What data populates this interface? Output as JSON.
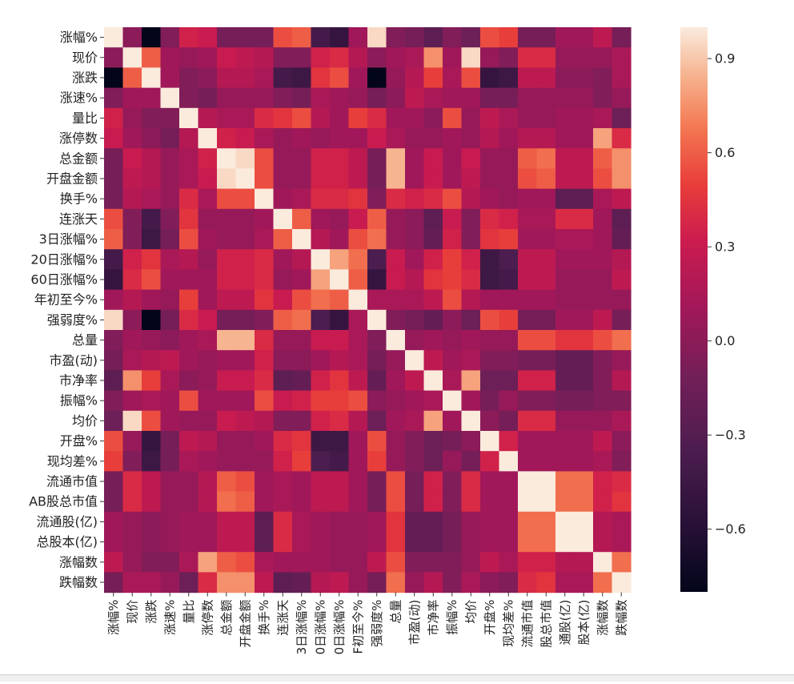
{
  "chart_data": {
    "type": "heatmap",
    "title": "",
    "xlabel": "",
    "ylabel": "",
    "row_labels": [
      "涨幅%",
      "现价",
      "涨跌",
      "涨速%",
      "量比",
      "涨停数",
      "总金额",
      "开盘金额",
      "换手%",
      "连涨天",
      "3日涨幅%",
      "20日涨幅%",
      "60日涨幅%",
      "年初至今%",
      "强弱度%",
      "总量",
      "市盈(动)",
      "市净率",
      "振幅%",
      "均价",
      "开盘%",
      "现均差%",
      "流通市值",
      "AB股总市值",
      "流通股(亿)",
      "总股本(亿)",
      "涨幅数",
      "跌幅数"
    ],
    "col_labels": [
      "涨幅%",
      "现价",
      "涨跌",
      "涨速%",
      "量比",
      "涨停数",
      "总金额",
      "开盘金额",
      "换手%",
      "连涨天",
      "3日涨幅%",
      "0日涨幅%",
      "0日涨幅%",
      "F初至今%",
      "强弱度%",
      "总量",
      "市盈(动)",
      "市净率",
      "振幅%",
      "均价",
      "开盘%",
      "现均差%",
      "流通市值",
      "股总市值",
      "通股(亿)",
      "股本(亿)",
      "涨幅数",
      "跌幅数"
    ],
    "colorbar": {
      "vmin": -0.8,
      "vmax": 1.0,
      "ticks": [
        0.9,
        0.6,
        0.3,
        0.0,
        -0.3,
        -0.6
      ],
      "tick_labels": [
        "0.9",
        "0.6",
        "0.3",
        "0.0",
        "−0.3",
        "−0.6"
      ],
      "colormap": "rocket"
    },
    "values": [
      [
        1.0,
        0.0,
        -0.8,
        -0.05,
        0.35,
        0.3,
        -0.1,
        -0.1,
        -0.1,
        0.55,
        0.6,
        -0.4,
        -0.5,
        0.1,
        0.95,
        -0.05,
        -0.1,
        -0.25,
        -0.05,
        -0.15,
        0.55,
        0.5,
        -0.1,
        -0.1,
        0.1,
        0.1,
        0.25,
        -0.1
      ],
      [
        0.0,
        1.0,
        0.6,
        0.1,
        0.05,
        0.1,
        0.3,
        0.25,
        0.2,
        -0.05,
        -0.05,
        0.35,
        0.4,
        0.2,
        0.0,
        0.1,
        0.15,
        0.75,
        0.1,
        0.95,
        0.05,
        -0.05,
        0.4,
        0.4,
        0.05,
        0.05,
        0.05,
        0.15
      ],
      [
        -0.8,
        0.6,
        1.0,
        0.1,
        -0.05,
        0.0,
        0.2,
        0.2,
        0.15,
        -0.4,
        -0.45,
        0.45,
        0.55,
        0.1,
        -0.8,
        0.05,
        0.2,
        0.5,
        0.15,
        0.55,
        -0.5,
        -0.45,
        0.25,
        0.25,
        0.0,
        0.0,
        -0.05,
        0.15
      ],
      [
        -0.05,
        0.1,
        0.1,
        1.0,
        -0.05,
        -0.1,
        0.05,
        0.05,
        0.05,
        -0.05,
        -0.1,
        0.15,
        0.1,
        0.05,
        -0.1,
        0.0,
        0.25,
        0.15,
        0.1,
        0.1,
        -0.1,
        -0.1,
        0.05,
        0.05,
        0.05,
        0.05,
        -0.05,
        0.05
      ],
      [
        0.35,
        0.05,
        -0.05,
        -0.05,
        1.0,
        0.2,
        0.15,
        0.15,
        0.4,
        0.45,
        0.55,
        0.2,
        0.1,
        0.5,
        0.4,
        0.1,
        0.1,
        0.0,
        0.55,
        0.05,
        0.25,
        0.15,
        0.05,
        0.05,
        0.1,
        0.1,
        0.15,
        -0.15
      ],
      [
        0.3,
        0.1,
        0.0,
        -0.1,
        0.2,
        1.0,
        0.35,
        0.3,
        0.15,
        0.05,
        0.1,
        0.05,
        0.1,
        0.1,
        0.3,
        0.15,
        0.05,
        0.05,
        0.1,
        0.05,
        0.2,
        0.1,
        0.2,
        0.2,
        0.1,
        0.1,
        0.8,
        0.4
      ],
      [
        -0.1,
        0.3,
        0.2,
        0.05,
        0.15,
        0.35,
        1.0,
        0.95,
        0.55,
        0.05,
        0.05,
        0.35,
        0.35,
        0.25,
        -0.1,
        0.85,
        0.1,
        0.3,
        0.1,
        0.3,
        0.05,
        0.05,
        0.6,
        0.65,
        0.25,
        0.25,
        0.6,
        0.75
      ],
      [
        -0.1,
        0.25,
        0.2,
        0.05,
        0.15,
        0.3,
        0.95,
        1.0,
        0.55,
        0.05,
        0.05,
        0.35,
        0.35,
        0.25,
        -0.1,
        0.85,
        0.1,
        0.3,
        0.1,
        0.25,
        0.05,
        0.05,
        0.55,
        0.6,
        0.25,
        0.25,
        0.55,
        0.75
      ],
      [
        -0.1,
        0.2,
        0.15,
        0.05,
        0.4,
        0.15,
        0.55,
        0.55,
        1.0,
        0.1,
        0.15,
        0.4,
        0.4,
        0.45,
        -0.05,
        0.4,
        0.35,
        0.4,
        0.55,
        0.2,
        0.1,
        0.05,
        0.1,
        0.1,
        -0.25,
        -0.25,
        0.15,
        0.25
      ],
      [
        0.55,
        -0.05,
        -0.4,
        -0.05,
        0.45,
        0.05,
        0.05,
        0.05,
        0.1,
        1.0,
        0.6,
        0.1,
        0.05,
        0.3,
        0.6,
        0.05,
        0.0,
        -0.25,
        0.3,
        -0.05,
        0.4,
        0.35,
        0.15,
        0.15,
        0.4,
        0.4,
        0.1,
        -0.25
      ],
      [
        0.6,
        -0.05,
        -0.45,
        -0.1,
        0.55,
        0.1,
        0.05,
        0.05,
        0.15,
        0.6,
        1.0,
        0.2,
        0.1,
        0.55,
        0.65,
        0.05,
        0.0,
        -0.2,
        0.35,
        -0.05,
        0.45,
        0.5,
        0.1,
        0.1,
        0.15,
        0.15,
        0.1,
        -0.2
      ],
      [
        -0.4,
        0.35,
        0.45,
        0.15,
        0.2,
        0.05,
        0.35,
        0.35,
        0.4,
        0.1,
        0.2,
        1.0,
        0.8,
        0.65,
        -0.35,
        0.3,
        0.1,
        0.35,
        0.5,
        0.35,
        -0.45,
        -0.35,
        0.25,
        0.25,
        0.1,
        0.1,
        0.1,
        0.2
      ],
      [
        -0.5,
        0.4,
        0.55,
        0.1,
        0.1,
        0.1,
        0.35,
        0.35,
        0.4,
        0.05,
        0.1,
        0.8,
        1.0,
        0.6,
        -0.5,
        0.3,
        0.2,
        0.45,
        0.5,
        0.4,
        -0.45,
        -0.4,
        0.25,
        0.25,
        0.05,
        0.05,
        0.05,
        0.25
      ],
      [
        0.1,
        0.2,
        0.1,
        0.05,
        0.5,
        0.1,
        0.25,
        0.25,
        0.45,
        0.3,
        0.55,
        0.65,
        0.6,
        1.0,
        0.15,
        0.15,
        0.15,
        0.25,
        0.55,
        0.2,
        0.1,
        0.1,
        0.1,
        0.1,
        0.05,
        0.05,
        0.05,
        0.05
      ],
      [
        0.95,
        0.0,
        -0.8,
        -0.1,
        0.4,
        0.3,
        -0.1,
        -0.1,
        -0.05,
        0.6,
        0.65,
        -0.35,
        -0.5,
        0.15,
        1.0,
        -0.05,
        -0.1,
        -0.2,
        0.0,
        -0.15,
        0.55,
        0.5,
        -0.1,
        -0.1,
        0.1,
        0.1,
        0.25,
        -0.1
      ],
      [
        -0.05,
        0.1,
        0.05,
        0.0,
        0.1,
        0.15,
        0.85,
        0.85,
        0.4,
        0.05,
        0.05,
        0.3,
        0.3,
        0.15,
        -0.05,
        1.0,
        0.05,
        0.1,
        0.05,
        0.1,
        0.05,
        0.05,
        0.55,
        0.55,
        0.45,
        0.45,
        0.55,
        0.65
      ],
      [
        -0.1,
        0.15,
        0.2,
        0.25,
        0.1,
        0.05,
        0.1,
        0.1,
        0.35,
        0.0,
        0.0,
        0.1,
        0.2,
        0.15,
        -0.1,
        0.05,
        1.0,
        0.25,
        0.1,
        0.15,
        -0.05,
        -0.05,
        -0.1,
        -0.1,
        -0.2,
        -0.2,
        -0.05,
        0.05
      ],
      [
        -0.25,
        0.75,
        0.5,
        0.15,
        0.0,
        0.05,
        0.3,
        0.3,
        0.4,
        -0.25,
        -0.2,
        0.35,
        0.45,
        0.25,
        -0.2,
        0.1,
        0.25,
        1.0,
        0.15,
        0.8,
        -0.15,
        -0.15,
        0.35,
        0.35,
        -0.2,
        -0.2,
        -0.05,
        0.2
      ],
      [
        -0.05,
        0.1,
        0.15,
        0.1,
        0.55,
        0.1,
        0.1,
        0.1,
        0.55,
        0.3,
        0.35,
        0.5,
        0.5,
        0.55,
        0.0,
        0.05,
        0.1,
        0.15,
        1.0,
        0.1,
        -0.1,
        0.05,
        -0.05,
        -0.05,
        -0.1,
        -0.1,
        -0.05,
        -0.05
      ],
      [
        -0.15,
        0.95,
        0.55,
        0.1,
        0.05,
        0.05,
        0.3,
        0.25,
        0.2,
        -0.05,
        -0.05,
        0.35,
        0.4,
        0.2,
        -0.15,
        0.1,
        0.15,
        0.8,
        0.1,
        1.0,
        0.0,
        -0.1,
        0.4,
        0.4,
        0.05,
        0.05,
        0.05,
        0.15
      ],
      [
        0.55,
        0.05,
        -0.5,
        -0.1,
        0.25,
        0.2,
        0.05,
        0.05,
        0.1,
        0.4,
        0.45,
        -0.45,
        -0.45,
        0.1,
        0.55,
        0.05,
        -0.05,
        -0.15,
        -0.1,
        0.0,
        1.0,
        0.35,
        0.1,
        0.1,
        0.1,
        0.1,
        0.25,
        0.0
      ],
      [
        0.5,
        -0.05,
        -0.45,
        -0.1,
        0.15,
        0.1,
        0.05,
        0.05,
        0.05,
        0.35,
        0.5,
        -0.35,
        -0.4,
        0.1,
        0.5,
        0.05,
        -0.05,
        -0.15,
        0.05,
        -0.1,
        0.35,
        1.0,
        0.1,
        0.1,
        0.1,
        0.1,
        0.15,
        -0.05
      ],
      [
        -0.1,
        0.4,
        0.25,
        0.05,
        0.05,
        0.2,
        0.6,
        0.55,
        0.1,
        0.15,
        0.1,
        0.25,
        0.25,
        0.1,
        -0.1,
        0.55,
        -0.1,
        0.35,
        -0.05,
        0.4,
        0.1,
        0.1,
        1.0,
        1.0,
        0.65,
        0.65,
        0.35,
        0.4
      ],
      [
        -0.1,
        0.4,
        0.25,
        0.05,
        0.05,
        0.2,
        0.65,
        0.6,
        0.1,
        0.15,
        0.1,
        0.25,
        0.25,
        0.1,
        -0.1,
        0.55,
        -0.1,
        0.35,
        -0.05,
        0.4,
        0.1,
        0.1,
        1.0,
        1.0,
        0.65,
        0.65,
        0.35,
        0.45
      ],
      [
        0.1,
        0.05,
        0.0,
        0.05,
        0.1,
        0.1,
        0.25,
        0.25,
        -0.25,
        0.4,
        0.15,
        0.1,
        0.05,
        0.05,
        0.1,
        0.45,
        -0.2,
        -0.2,
        -0.1,
        0.05,
        0.1,
        0.1,
        0.65,
        0.65,
        1.0,
        1.0,
        0.2,
        0.15
      ],
      [
        0.1,
        0.05,
        0.0,
        0.05,
        0.1,
        0.1,
        0.25,
        0.25,
        -0.25,
        0.4,
        0.15,
        0.1,
        0.05,
        0.05,
        0.1,
        0.45,
        -0.2,
        -0.2,
        -0.1,
        0.05,
        0.1,
        0.1,
        0.65,
        0.65,
        1.0,
        1.0,
        0.2,
        0.15
      ],
      [
        0.25,
        0.05,
        -0.05,
        -0.05,
        0.15,
        0.8,
        0.6,
        0.55,
        0.15,
        0.1,
        0.1,
        0.1,
        0.05,
        0.05,
        0.25,
        0.55,
        -0.05,
        -0.05,
        -0.05,
        0.05,
        0.25,
        0.15,
        0.35,
        0.35,
        0.2,
        0.2,
        1.0,
        0.65
      ],
      [
        -0.1,
        0.15,
        0.15,
        0.05,
        -0.15,
        0.4,
        0.75,
        0.75,
        0.25,
        -0.25,
        -0.2,
        0.2,
        0.25,
        0.05,
        -0.1,
        0.65,
        0.05,
        0.2,
        -0.05,
        0.15,
        0.0,
        -0.05,
        0.4,
        0.45,
        0.15,
        0.15,
        0.65,
        1.0
      ]
    ]
  }
}
